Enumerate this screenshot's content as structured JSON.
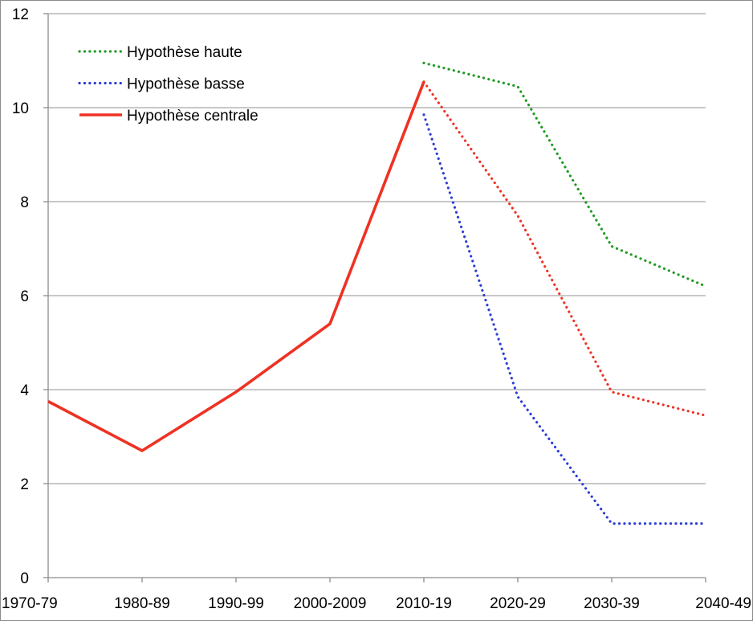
{
  "chart_data": {
    "type": "line",
    "title": "",
    "xlabel": "",
    "ylabel": "",
    "categories": [
      "1970-79",
      "1980-89",
      "1990-99",
      "2000-2009",
      "2010-19",
      "2020-29",
      "2030-39",
      "2040-49"
    ],
    "ylim": [
      0,
      12
    ],
    "yticks": [
      "0",
      "2",
      "4",
      "6",
      "8",
      "10",
      "12"
    ],
    "grid": true,
    "legend_position": "top-left",
    "series": [
      {
        "name": "Hypothèse haute",
        "color": "#1f9a22",
        "style": "dotted",
        "values": [
          null,
          null,
          null,
          null,
          10.95,
          10.45,
          7.05,
          6.2
        ]
      },
      {
        "name": "Hypothèse basse",
        "color": "#2b3fd6",
        "style": "dotted",
        "values": [
          null,
          null,
          null,
          null,
          9.85,
          3.85,
          1.15,
          1.15
        ]
      },
      {
        "name": "Hypothèse centrale",
        "color": "#ee3224",
        "style": "solid",
        "values": [
          3.75,
          2.7,
          3.95,
          5.4,
          10.55,
          null,
          null,
          null
        ]
      },
      {
        "name": "",
        "color": "#ee3224",
        "style": "dotted",
        "values": [
          null,
          null,
          null,
          null,
          10.55,
          7.7,
          3.95,
          3.45
        ]
      }
    ]
  }
}
